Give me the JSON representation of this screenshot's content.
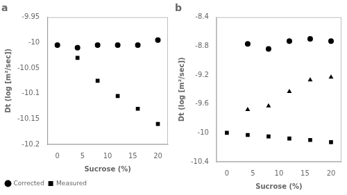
{
  "chart_data": [
    {
      "type": "scatter",
      "title": "a",
      "xlabel": "Sucrose (%)",
      "ylabel": "Dt (log [m²/sec])",
      "xlim": [
        -2,
        22
      ],
      "xticks": [
        0,
        5,
        10,
        15,
        20
      ],
      "ylim": [
        -10.2,
        -9.95
      ],
      "yticks": [
        -10.2,
        -10.15,
        -10.1,
        -10.05,
        -10,
        -9.95
      ],
      "grid": false,
      "legend": "lower left",
      "series": [
        {
          "name": "Corrected",
          "marker": "circle",
          "color": "black",
          "x": [
            0,
            4,
            8,
            12,
            16,
            20
          ],
          "values": [
            -10.005,
            -10.01,
            -10.005,
            -10.005,
            -10.005,
            -9.995
          ]
        },
        {
          "name": "Measured",
          "marker": "square",
          "color": "black",
          "x": [
            0,
            4,
            8,
            12,
            16,
            20
          ],
          "values": [
            -10.005,
            -10.03,
            -10.075,
            -10.105,
            -10.13,
            -10.16
          ]
        }
      ]
    },
    {
      "type": "scatter",
      "title": "b",
      "xlabel": "Sucrose (%)",
      "ylabel": "Dt (log [m²/sec])",
      "xlim": [
        -2,
        22
      ],
      "xticks": [
        0,
        5,
        10,
        15,
        20
      ],
      "ylim": [
        -10.4,
        -8.4
      ],
      "yticks": [
        -10.4,
        -10,
        -9.6,
        -9.2,
        -8.8,
        -8.4
      ],
      "grid": false,
      "series": [
        {
          "marker": "circle",
          "color": "black",
          "x": [
            4,
            8,
            12,
            16,
            20
          ],
          "values": [
            -8.77,
            -8.84,
            -8.73,
            -8.7,
            -8.73
          ]
        },
        {
          "marker": "triangle",
          "color": "black",
          "x": [
            4,
            8,
            12,
            16,
            20
          ],
          "values": [
            -9.68,
            -9.63,
            -9.43,
            -9.27,
            -9.23
          ]
        },
        {
          "marker": "square",
          "color": "black",
          "x": [
            0,
            4,
            8,
            12,
            16,
            20
          ],
          "values": [
            -10.0,
            -10.03,
            -10.05,
            -10.08,
            -10.1,
            -10.13
          ]
        }
      ]
    }
  ]
}
